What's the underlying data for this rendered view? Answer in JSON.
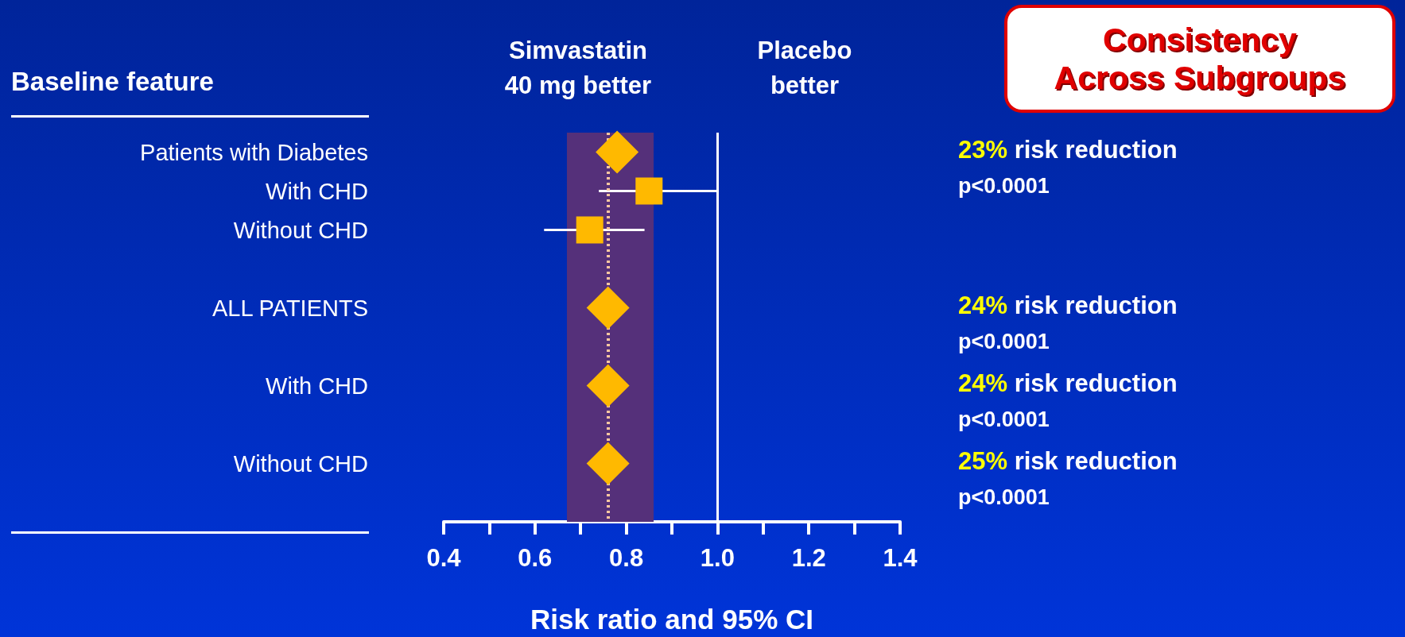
{
  "chart_data": {
    "type": "scatter",
    "orientation": "horizontal",
    "title": "Consistency Across Subgroups",
    "xlabel": "Risk ratio and 95% CI",
    "categories": [
      "Patients with Diabetes",
      "With CHD",
      "Without CHD",
      null,
      "ALL PATIENTS",
      null,
      "With CHD",
      null,
      "Without CHD",
      null
    ],
    "series": [
      {
        "marker": "diamond",
        "color": "#ffb900",
        "values": [
          0.78,
          null,
          null,
          null,
          0.76,
          null,
          0.76,
          null,
          0.76,
          null
        ]
      },
      {
        "marker": "square",
        "color": "#ffb900",
        "values": [
          null,
          0.85,
          0.72,
          null,
          null,
          null,
          null,
          null,
          null,
          null
        ],
        "errors": [
          null,
          [
            0.74,
            1.0
          ],
          [
            0.62,
            0.84
          ],
          null,
          null,
          null,
          null,
          null,
          null,
          null
        ]
      }
    ],
    "xlim": [
      0.4,
      1.4
    ],
    "xticks": [
      0.4,
      {
        "value": 0.5,
        "label": null
      },
      0.6,
      {
        "value": 0.7,
        "label": null
      },
      0.8,
      {
        "value": 0.9,
        "label": null
      },
      {
        "value": 1,
        "label": "1.0"
      },
      {
        "value": 1.1,
        "label": null
      },
      1.2,
      {
        "value": 1.3,
        "label": null
      },
      1.4
    ],
    "grid": false,
    "ref_lines": [
      {
        "axis": "x",
        "value": 1,
        "color": "#ffffff",
        "line_style": "solid"
      },
      {
        "axis": "x",
        "value": 0.76,
        "color": "#ffc8a0",
        "line_style": "dotted"
      }
    ],
    "bands": [
      {
        "axis": "x",
        "from": 0.67,
        "to": 0.86,
        "color": "#55307a"
      }
    ],
    "annotations": [
      "Baseline feature",
      "Simvastatin\n40 mg better",
      "Placebo\nbetter",
      "23% risk reduction\np<0.0001",
      "24% risk reduction\np<0.0001",
      "24% risk reduction\np<0.0001",
      "25% risk reduction\np<0.0001"
    ]
  }
}
